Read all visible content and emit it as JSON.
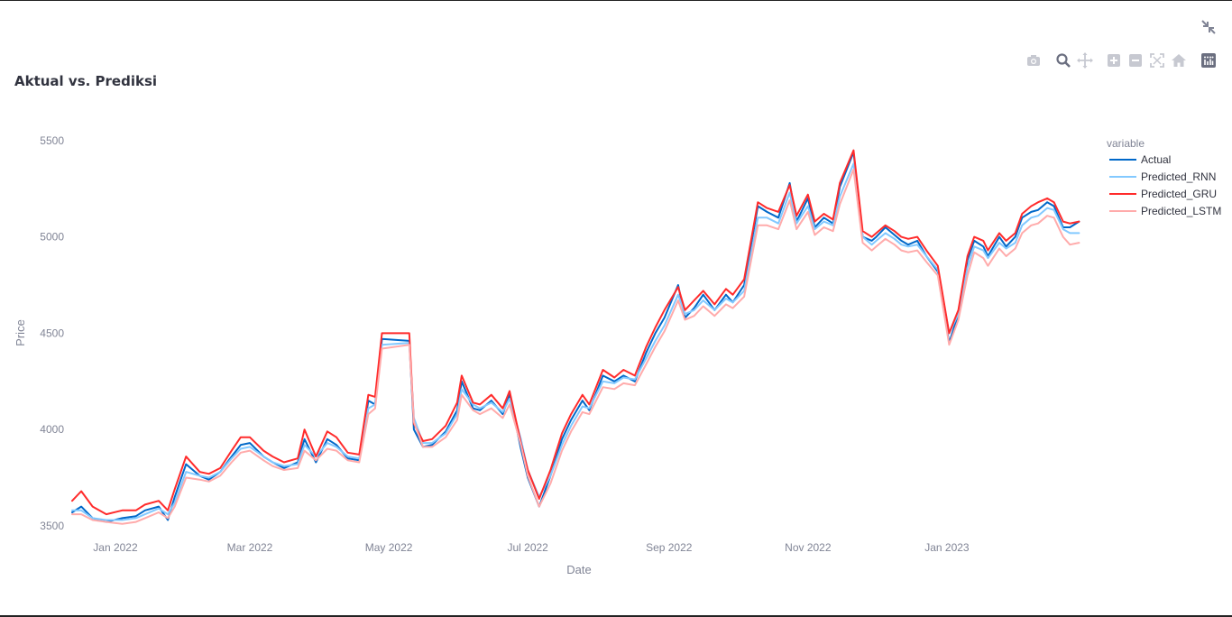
{
  "chart_data": {
    "type": "line",
    "title": "Aktual vs. Prediksi",
    "xlabel": "Date",
    "ylabel": "Price",
    "xlim": [
      "2021-12-13",
      "2023-03-03"
    ],
    "ylim": [
      3420,
      5640
    ],
    "yticks": [
      3500,
      4000,
      4500,
      5000,
      5500
    ],
    "xticks": [
      {
        "date": "2022-01-01",
        "label": "Jan 2022"
      },
      {
        "date": "2022-03-01",
        "label": "Mar 2022"
      },
      {
        "date": "2022-05-01",
        "label": "May 2022"
      },
      {
        "date": "2022-07-01",
        "label": "Jul 2022"
      },
      {
        "date": "2022-09-01",
        "label": "Sep 2022"
      },
      {
        "date": "2022-11-01",
        "label": "Nov 2022"
      },
      {
        "date": "2023-01-01",
        "label": "Jan 2023"
      }
    ],
    "grid": false,
    "legend_title": "variable",
    "legend_position": "right",
    "x": [
      "2021-12-13",
      "2021-12-17",
      "2021-12-22",
      "2021-12-28",
      "2022-01-04",
      "2022-01-10",
      "2022-01-14",
      "2022-01-20",
      "2022-01-24",
      "2022-01-27",
      "2022-02-01",
      "2022-02-07",
      "2022-02-11",
      "2022-02-16",
      "2022-02-21",
      "2022-02-25",
      "2022-03-01",
      "2022-03-07",
      "2022-03-11",
      "2022-03-16",
      "2022-03-22",
      "2022-03-25",
      "2022-03-30",
      "2022-04-04",
      "2022-04-08",
      "2022-04-13",
      "2022-04-18",
      "2022-04-22",
      "2022-04-25",
      "2022-04-28",
      "2022-05-10",
      "2022-05-12",
      "2022-05-16",
      "2022-05-20",
      "2022-05-26",
      "2022-05-31",
      "2022-06-02",
      "2022-06-07",
      "2022-06-10",
      "2022-06-15",
      "2022-06-20",
      "2022-06-23",
      "2022-06-28",
      "2022-07-01",
      "2022-07-06",
      "2022-07-11",
      "2022-07-16",
      "2022-07-20",
      "2022-07-25",
      "2022-07-28",
      "2022-08-03",
      "2022-08-08",
      "2022-08-12",
      "2022-08-17",
      "2022-08-22",
      "2022-08-26",
      "2022-08-30",
      "2022-09-05",
      "2022-09-08",
      "2022-09-12",
      "2022-09-16",
      "2022-09-21",
      "2022-09-26",
      "2022-09-29",
      "2022-10-04",
      "2022-10-10",
      "2022-10-14",
      "2022-10-19",
      "2022-10-24",
      "2022-10-27",
      "2022-11-01",
      "2022-11-04",
      "2022-11-08",
      "2022-11-12",
      "2022-11-15",
      "2022-11-21",
      "2022-11-25",
      "2022-11-29",
      "2022-12-01",
      "2022-12-05",
      "2022-12-09",
      "2022-12-12",
      "2022-12-15",
      "2022-12-19",
      "2022-12-23",
      "2022-12-28",
      "2023-01-02",
      "2023-01-06",
      "2023-01-10",
      "2023-01-13",
      "2023-01-17",
      "2023-01-19",
      "2023-01-24",
      "2023-01-27",
      "2023-01-31",
      "2023-02-03",
      "2023-02-07",
      "2023-02-10",
      "2023-02-14",
      "2023-02-17",
      "2023-02-21",
      "2023-02-24",
      "2023-02-28"
    ],
    "series": [
      {
        "name": "Actual",
        "color": "#0068c9",
        "values": [
          3570,
          3600,
          3540,
          3520,
          3540,
          3550,
          3580,
          3600,
          3530,
          3650,
          3820,
          3760,
          3740,
          3780,
          3860,
          3920,
          3930,
          3860,
          3830,
          3800,
          3830,
          3950,
          3830,
          3950,
          3920,
          3850,
          3840,
          4150,
          4130,
          4470,
          4460,
          4000,
          3910,
          3920,
          3990,
          4100,
          4250,
          4110,
          4100,
          4150,
          4080,
          4180,
          3900,
          3750,
          3600,
          3760,
          3950,
          4050,
          4150,
          4100,
          4280,
          4250,
          4280,
          4250,
          4400,
          4500,
          4580,
          4750,
          4580,
          4630,
          4700,
          4620,
          4700,
          4660,
          4750,
          5160,
          5130,
          5100,
          5280,
          5080,
          5200,
          5050,
          5100,
          5070,
          5260,
          5440,
          5000,
          4980,
          5000,
          5050,
          5010,
          4980,
          4960,
          4980,
          4900,
          4820,
          4450,
          4600,
          4880,
          4980,
          4950,
          4900,
          5000,
          4950,
          5000,
          5100,
          5130,
          5140,
          5180,
          5160,
          5050,
          5050,
          5080
        ]
      },
      {
        "name": "Predicted_RNN",
        "color": "#83c9ff",
        "values": [
          3580,
          3580,
          3540,
          3530,
          3530,
          3540,
          3560,
          3590,
          3560,
          3620,
          3780,
          3760,
          3750,
          3780,
          3850,
          3900,
          3910,
          3860,
          3830,
          3810,
          3820,
          3920,
          3860,
          3930,
          3910,
          3860,
          3850,
          4110,
          4130,
          4440,
          4450,
          4060,
          3930,
          3930,
          3980,
          4080,
          4210,
          4130,
          4110,
          4140,
          4090,
          4160,
          3950,
          3790,
          3650,
          3760,
          3920,
          4020,
          4120,
          4110,
          4250,
          4240,
          4270,
          4260,
          4370,
          4460,
          4540,
          4700,
          4600,
          4620,
          4670,
          4620,
          4680,
          4660,
          4720,
          5100,
          5100,
          5070,
          5230,
          5070,
          5160,
          5040,
          5080,
          5060,
          5210,
          5380,
          5000,
          4960,
          4980,
          5020,
          4990,
          4960,
          4950,
          4960,
          4900,
          4830,
          4500,
          4600,
          4840,
          4950,
          4930,
          4890,
          4970,
          4940,
          4970,
          5060,
          5100,
          5110,
          5150,
          5140,
          5040,
          5020,
          5020
        ]
      },
      {
        "name": "Predicted_GRU",
        "color": "#ff2b2b",
        "values": [
          3630,
          3680,
          3600,
          3560,
          3580,
          3580,
          3610,
          3630,
          3580,
          3690,
          3860,
          3780,
          3770,
          3800,
          3890,
          3960,
          3960,
          3890,
          3860,
          3830,
          3850,
          4000,
          3860,
          3990,
          3960,
          3880,
          3870,
          4180,
          4170,
          4500,
          4500,
          4030,
          3940,
          3950,
          4020,
          4140,
          4280,
          4140,
          4130,
          4180,
          4110,
          4200,
          3930,
          3790,
          3640,
          3790,
          3980,
          4080,
          4180,
          4130,
          4310,
          4270,
          4310,
          4280,
          4430,
          4530,
          4620,
          4740,
          4620,
          4670,
          4720,
          4650,
          4730,
          4700,
          4780,
          5180,
          5150,
          5130,
          5270,
          5110,
          5220,
          5080,
          5120,
          5090,
          5280,
          5450,
          5030,
          5000,
          5020,
          5060,
          5030,
          5000,
          4990,
          5000,
          4930,
          4850,
          4500,
          4620,
          4900,
          5000,
          4980,
          4930,
          5020,
          4980,
          5020,
          5120,
          5160,
          5180,
          5200,
          5180,
          5080,
          5070,
          5080
        ]
      },
      {
        "name": "Predicted_LSTM",
        "color": "#ffabab",
        "values": [
          3560,
          3560,
          3530,
          3520,
          3510,
          3520,
          3540,
          3570,
          3540,
          3600,
          3750,
          3740,
          3730,
          3760,
          3830,
          3880,
          3890,
          3840,
          3810,
          3790,
          3800,
          3890,
          3840,
          3900,
          3890,
          3840,
          3830,
          4080,
          4110,
          4420,
          4440,
          4040,
          3910,
          3910,
          3960,
          4050,
          4180,
          4100,
          4080,
          4110,
          4060,
          4130,
          3920,
          3760,
          3600,
          3720,
          3890,
          3990,
          4090,
          4080,
          4220,
          4210,
          4240,
          4230,
          4340,
          4430,
          4510,
          4670,
          4570,
          4590,
          4640,
          4590,
          4650,
          4630,
          4690,
          5060,
          5060,
          5040,
          5190,
          5040,
          5130,
          5010,
          5050,
          5030,
          5170,
          5350,
          4970,
          4930,
          4950,
          4990,
          4960,
          4930,
          4920,
          4930,
          4870,
          4800,
          4440,
          4570,
          4800,
          4920,
          4890,
          4850,
          4940,
          4900,
          4940,
          5020,
          5060,
          5070,
          5110,
          5100,
          5000,
          4960,
          4970
        ]
      }
    ]
  }
}
